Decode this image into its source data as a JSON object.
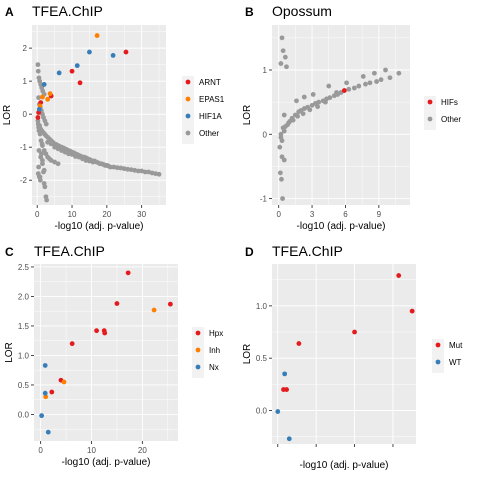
{
  "chart_data": [
    {
      "tag": "A",
      "type": "scatter",
      "title": "TFEA.ChIP",
      "xlabel": "-log10 (adj. p-value)",
      "ylabel": "LOR",
      "xlim": [
        -1.5,
        37
      ],
      "ylim": [
        -2.75,
        2.7
      ],
      "xticks": [
        0,
        10,
        20,
        30
      ],
      "yticks": [
        -2,
        -1,
        0,
        1,
        2
      ],
      "grid": true,
      "legend_position": "right",
      "series": [
        {
          "name": "ARNT",
          "color": "#e41a1c",
          "x": [
            25.5,
            12.3,
            10.0,
            4.0,
            1.0,
            0.4,
            0.2
          ],
          "y": [
            1.88,
            0.95,
            1.3,
            0.55,
            0.35,
            0.05,
            -0.1
          ]
        },
        {
          "name": "EPAS1",
          "color": "#ff7f00",
          "x": [
            17.2,
            3.7,
            1.5,
            3.0,
            0.8
          ],
          "y": [
            2.38,
            0.62,
            0.52,
            0.45,
            0.25
          ]
        },
        {
          "name": "HIF1A",
          "color": "#377eb8",
          "x": [
            15.0,
            21.8,
            11.5,
            6.3,
            2.0,
            0.6
          ],
          "y": [
            1.88,
            1.78,
            1.47,
            1.25,
            0.9,
            0.15
          ]
        },
        {
          "name": "Other",
          "color": "#999999",
          "x": [
            0.2,
            0.3,
            0.5,
            0.7,
            1.0,
            1.3,
            1.6,
            2.0,
            0.4,
            0.6,
            0.9,
            1.2,
            1.5,
            1.8,
            2.2,
            2.6,
            0.3,
            0.5,
            0.8,
            1.1,
            1.4,
            0.2,
            0.4,
            0.7,
            1.0,
            1.3,
            1.7,
            2.1,
            2.5,
            3.0,
            3.5,
            4.0,
            4.5,
            5.0,
            5.5,
            6.0,
            6.5,
            7.0,
            7.5,
            8.0,
            8.5,
            9.0,
            9.5,
            10.0,
            10.5,
            11.0,
            11.5,
            12.0,
            12.5,
            13.0,
            13.5,
            14.0,
            14.5,
            15.0,
            15.5,
            16.0,
            16.5,
            17.0,
            17.5,
            18.0,
            18.5,
            19.0,
            19.5,
            20.0,
            20.5,
            21.0,
            22.0,
            23.0,
            24.0,
            25.0,
            26.0,
            27.0,
            28.0,
            29.0,
            30.0,
            31.0,
            32.0,
            33.0,
            34.0,
            35.0,
            3.0,
            4.0,
            5.0,
            6.0,
            7.0,
            8.0,
            9.0,
            10.0,
            11.0,
            12.0,
            13.0,
            14.0,
            15.0,
            16.0,
            18.0,
            20.0,
            1.5,
            2.0,
            2.5,
            3.0,
            3.5,
            4.0,
            5.0,
            6.0,
            0.5,
            1.0,
            1.5,
            2.0,
            0.3,
            0.6,
            0.9,
            1.2,
            1.5,
            2.0,
            2.5,
            2.7,
            1.8,
            2.2,
            0.4,
            0.8
          ],
          "y": [
            1.5,
            1.3,
            1.1,
            1.0,
            0.9,
            0.8,
            0.7,
            0.6,
            0.5,
            0.3,
            0.2,
            0.1,
            0.0,
            -0.1,
            -0.2,
            -0.3,
            -0.3,
            -0.5,
            -0.6,
            -0.8,
            -0.9,
            -0.2,
            -0.4,
            -0.35,
            -0.45,
            -0.5,
            -0.55,
            -0.6,
            -0.65,
            -0.7,
            -0.75,
            -0.8,
            -0.85,
            -0.9,
            -0.92,
            -0.95,
            -0.98,
            -1.0,
            -1.02,
            -1.05,
            -1.07,
            -1.1,
            -1.12,
            -1.15,
            -1.17,
            -1.2,
            -1.22,
            -1.25,
            -1.27,
            -1.3,
            -1.3,
            -1.32,
            -1.35,
            -1.37,
            -1.4,
            -1.42,
            -1.42,
            -1.45,
            -1.47,
            -1.5,
            -1.5,
            -1.52,
            -1.55,
            -1.55,
            -1.57,
            -1.6,
            -1.6,
            -1.62,
            -1.63,
            -1.65,
            -1.67,
            -1.68,
            -1.7,
            -1.72,
            -1.72,
            -1.75,
            -1.75,
            -1.78,
            -1.8,
            -1.82,
            -0.85,
            -0.9,
            -1.0,
            -1.05,
            -1.1,
            -1.15,
            -1.2,
            -1.22,
            -1.28,
            -1.3,
            -1.35,
            -1.4,
            -1.42,
            -1.45,
            -1.5,
            -1.55,
            -0.95,
            -1.1,
            -1.2,
            -1.3,
            -1.35,
            -1.4,
            -1.45,
            -1.5,
            -1.1,
            -1.3,
            -1.5,
            -1.7,
            -1.8,
            -1.9,
            -2.0,
            -1.2,
            -1.4,
            -2.1,
            -2.5,
            -2.6,
            -1.75,
            -2.2,
            -1.6,
            -1.9
          ]
        }
      ]
    },
    {
      "tag": "B",
      "type": "scatter",
      "title": "Opossum",
      "xlabel": "-log10 (adj. p-value)",
      "ylabel": "LOR",
      "xlim": [
        -0.6,
        11.8
      ],
      "ylim": [
        -1.1,
        1.7
      ],
      "xticks": [
        0,
        3,
        6,
        9
      ],
      "yticks": [
        -1,
        0,
        1
      ],
      "grid": true,
      "legend_position": "right",
      "series": [
        {
          "name": "HIFs",
          "color": "#e41a1c",
          "x": [
            5.9
          ],
          "y": [
            0.68
          ]
        },
        {
          "name": "Other",
          "color": "#999999",
          "x": [
            0.3,
            0.5,
            0.8,
            1.0,
            1.2,
            1.5,
            1.8,
            2.0,
            2.3,
            2.6,
            3.0,
            3.3,
            3.6,
            4.0,
            4.3,
            4.6,
            5.0,
            5.3,
            5.6,
            6.3,
            6.8,
            7.2,
            7.8,
            8.2,
            8.8,
            9.2,
            10.0,
            10.8,
            0.2,
            0.4,
            0.6,
            0.9,
            1.3,
            1.7,
            2.2,
            2.8,
            3.5,
            4.2,
            0.1,
            0.3,
            0.5,
            0.2,
            0.4,
            0.6,
            0.15,
            0.25,
            0.35,
            0.5,
            1.6,
            2.3,
            3.1,
            4.5,
            5.2,
            6.1,
            7.6,
            0.3,
            0.7,
            8.6,
            9.6,
            0.2
          ],
          "y": [
            -0.1,
            0.05,
            0.15,
            0.2,
            0.25,
            0.3,
            0.35,
            0.37,
            0.4,
            0.42,
            0.45,
            0.48,
            0.5,
            0.52,
            0.55,
            0.57,
            0.6,
            0.62,
            0.65,
            0.7,
            0.72,
            0.75,
            0.78,
            0.8,
            0.82,
            0.85,
            0.88,
            0.95,
            0.0,
            0.1,
            0.12,
            0.18,
            0.22,
            0.28,
            0.32,
            0.38,
            0.43,
            0.5,
            -0.2,
            -0.35,
            -0.4,
            1.1,
            1.3,
            1.2,
            -0.6,
            -0.7,
            -1.0,
            0.3,
            0.52,
            0.58,
            0.62,
            0.75,
            0.65,
            0.8,
            0.9,
            1.5,
            1.05,
            0.95,
            1.0,
            -0.05
          ]
        }
      ]
    },
    {
      "tag": "C",
      "type": "scatter",
      "title": "TFEA.ChIP",
      "xlabel": "-log10 (adj. p-value)",
      "ylabel": "LOR",
      "xlim": [
        -1.3,
        27
      ],
      "ylim": [
        -0.45,
        2.55
      ],
      "xticks": [
        0,
        10,
        20
      ],
      "yticks": [
        0.0,
        0.5,
        1.0,
        1.5,
        2.0,
        2.5
      ],
      "grid": true,
      "legend_position": "right",
      "series": [
        {
          "name": "Hpx",
          "color": "#e41a1c",
          "x": [
            17.2,
            15.0,
            25.5,
            11.0,
            12.5,
            12.6,
            6.2,
            4.0,
            2.2
          ],
          "y": [
            2.4,
            1.88,
            1.87,
            1.42,
            1.42,
            1.38,
            1.2,
            0.58,
            0.38
          ]
        },
        {
          "name": "Inh",
          "color": "#ff7f00",
          "x": [
            22.3,
            4.6,
            1.0
          ],
          "y": [
            1.77,
            0.55,
            0.3
          ]
        },
        {
          "name": "Nx",
          "color": "#377eb8",
          "x": [
            0.9,
            0.9,
            0.2,
            1.5
          ],
          "y": [
            0.83,
            0.36,
            -0.02,
            -0.3
          ]
        }
      ]
    },
    {
      "tag": "D",
      "type": "scatter",
      "title": "TFEA.ChIP",
      "xlabel": "-log10 (adj. p-value)",
      "ylabel": "LOR",
      "xlim": [
        -1.5,
        36
      ],
      "ylim": [
        -0.32,
        1.4
      ],
      "xticks": [],
      "yticks": [
        0.0,
        0.5,
        1.0
      ],
      "grid": true,
      "legend_position": "right",
      "series": [
        {
          "name": "Mut",
          "color": "#e41a1c",
          "x": [
            31.5,
            35.0,
            20.0,
            5.5,
            1.5,
            2.3
          ],
          "y": [
            1.29,
            0.95,
            0.75,
            0.64,
            0.2,
            0.2
          ]
        },
        {
          "name": "WT",
          "color": "#377eb8",
          "x": [
            1.8,
            0.0,
            3.0
          ],
          "y": [
            0.35,
            -0.01,
            -0.27
          ]
        }
      ]
    }
  ]
}
